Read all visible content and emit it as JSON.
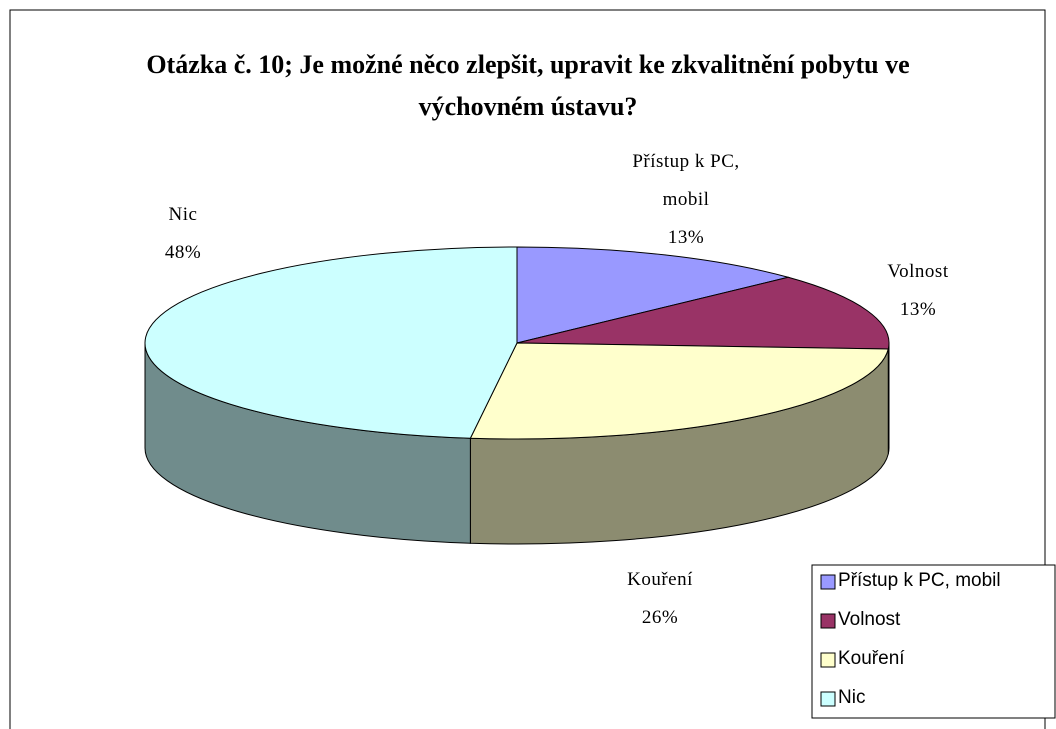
{
  "chart_data": {
    "type": "pie3d",
    "title": "Otázka č. 10; Je možné něco zlepšit, upravit ke zkvalitnění pobytu ve výchovném ústavu?",
    "categories": [
      "Přístup k PC, mobil",
      "Volnost",
      "Kouření",
      "Nic"
    ],
    "values": [
      13,
      13,
      26,
      48
    ],
    "value_labels": [
      "13%",
      "13%",
      "26%",
      "48%"
    ],
    "colors": [
      "#9999ff",
      "#993366",
      "#ffffcc",
      "#ccffff"
    ],
    "legend": "bottom-right"
  }
}
